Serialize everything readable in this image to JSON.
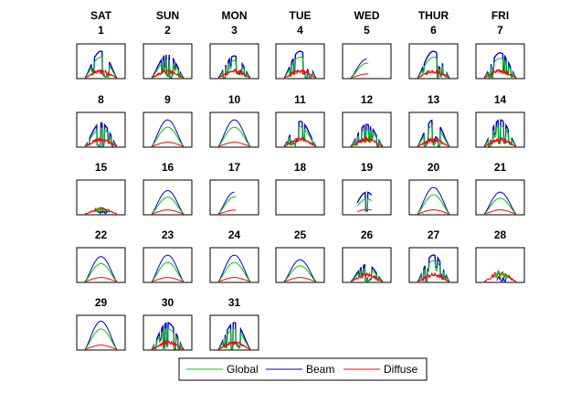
{
  "chart_data": {
    "type": "line",
    "title": "",
    "xlabel": "",
    "ylabel": "",
    "grid": false,
    "legend_position": "bottom-center",
    "day_headers": [
      "SAT",
      "SUN",
      "MON",
      "TUE",
      "WED",
      "THUR",
      "FRI"
    ],
    "series": [
      {
        "name": "Global",
        "color": "#00cc00"
      },
      {
        "name": "Beam",
        "color": "#0000cc"
      },
      {
        "name": "Diffuse",
        "color": "#ff0000"
      }
    ],
    "days": [
      {
        "day": "1",
        "condition": "intermittent",
        "peak": 0.85
      },
      {
        "day": "2",
        "condition": "intermittent",
        "peak": 0.75
      },
      {
        "day": "3",
        "condition": "intermittent",
        "peak": 0.7
      },
      {
        "day": "4",
        "condition": "intermittent",
        "peak": 0.85
      },
      {
        "day": "5",
        "condition": "partial-morning",
        "peak": 0.6
      },
      {
        "day": "6",
        "condition": "intermittent",
        "peak": 0.85
      },
      {
        "day": "7",
        "condition": "intermittent",
        "peak": 0.8
      },
      {
        "day": "8",
        "condition": "intermittent",
        "peak": 0.75
      },
      {
        "day": "9",
        "condition": "clear",
        "peak": 0.85
      },
      {
        "day": "10",
        "condition": "clear",
        "peak": 0.85
      },
      {
        "day": "11",
        "condition": "intermittent",
        "peak": 0.8
      },
      {
        "day": "12",
        "condition": "intermittent",
        "peak": 0.7
      },
      {
        "day": "13",
        "condition": "intermittent",
        "peak": 0.85
      },
      {
        "day": "14",
        "condition": "intermittent",
        "peak": 0.85
      },
      {
        "day": "15",
        "condition": "overcast",
        "peak": 0.2
      },
      {
        "day": "16",
        "condition": "clear",
        "peak": 0.75
      },
      {
        "day": "17",
        "condition": "partial-morning",
        "peak": 0.7
      },
      {
        "day": "18",
        "condition": "no-data",
        "peak": 0.0
      },
      {
        "day": "19",
        "condition": "partial-midday",
        "peak": 0.7
      },
      {
        "day": "20",
        "condition": "clear",
        "peak": 0.85
      },
      {
        "day": "21",
        "condition": "clear",
        "peak": 0.7
      },
      {
        "day": "22",
        "condition": "clear",
        "peak": 0.8
      },
      {
        "day": "23",
        "condition": "clear",
        "peak": 0.85
      },
      {
        "day": "24",
        "condition": "clear",
        "peak": 0.85
      },
      {
        "day": "25",
        "condition": "clear",
        "peak": 0.7
      },
      {
        "day": "26",
        "condition": "intermittent",
        "peak": 0.55
      },
      {
        "day": "27",
        "condition": "intermittent",
        "peak": 0.85
      },
      {
        "day": "28",
        "condition": "overcast",
        "peak": 0.35
      },
      {
        "day": "29",
        "condition": "clear",
        "peak": 0.9
      },
      {
        "day": "30",
        "condition": "intermittent",
        "peak": 0.85
      },
      {
        "day": "31",
        "condition": "intermittent",
        "peak": 0.85
      }
    ]
  }
}
